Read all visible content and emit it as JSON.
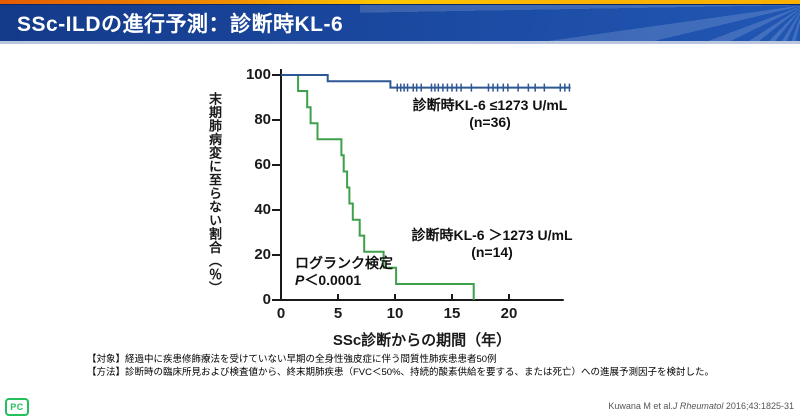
{
  "header": {
    "title": "SSc-ILDの進行予測：診断時KL-6"
  },
  "colors": {
    "accent_orange": "#e55c00",
    "accent_yellow": "#ffc800",
    "header_blue": "#1b4aa2",
    "series_low_blue": "#2e5795",
    "series_high_green": "#3fa04c",
    "logo_green": "#25c05d"
  },
  "chart_data": {
    "type": "line",
    "subtype": "kaplan-meier-step",
    "title": "",
    "xlabel": "SSc診断からの期間（年）",
    "ylabel": "末期肺病変に至らない割合（％）",
    "xlim": [
      0,
      25
    ],
    "ylim": [
      0,
      100
    ],
    "xticks": [
      0,
      5,
      10,
      15,
      20
    ],
    "yticks": [
      0,
      20,
      40,
      60,
      80,
      100
    ],
    "grid": false,
    "legend_position": "inline-annotations",
    "series": [
      {
        "name": "low-kl6",
        "label_line1": "診断時KL-6 ≤1273 U/mL",
        "label_line2": "(n=36)",
        "color": "#2e5795",
        "step_points": [
          [
            0,
            100
          ],
          [
            4.1,
            100
          ],
          [
            4.1,
            97.2
          ],
          [
            9.6,
            97.2
          ],
          [
            9.6,
            94.4
          ],
          [
            25.4,
            94.4
          ]
        ],
        "censor_level": 94.4,
        "censor_years": [
          10.2,
          10.5,
          10.8,
          11.1,
          11.6,
          11.9,
          12.3,
          13.2,
          13.5,
          13.8,
          14.2,
          14.6,
          15.0,
          15.4,
          15.8,
          16.7,
          18.2,
          18.6,
          19.0,
          19.5,
          19.9,
          20.8,
          21.7,
          22.3,
          23.1,
          24.5,
          24.9,
          25.3
        ]
      },
      {
        "name": "high-kl6",
        "label_line1": "診断時KL-6 ＞1273 U/mL",
        "label_line2": "(n=14)",
        "color": "#3fa04c",
        "step_points": [
          [
            0,
            100
          ],
          [
            1.5,
            100
          ],
          [
            1.5,
            92.9
          ],
          [
            2.3,
            92.9
          ],
          [
            2.3,
            85.7
          ],
          [
            2.6,
            85.7
          ],
          [
            2.6,
            78.6
          ],
          [
            3.2,
            78.6
          ],
          [
            3.2,
            71.4
          ],
          [
            5.3,
            71.4
          ],
          [
            5.3,
            64.3
          ],
          [
            5.5,
            64.3
          ],
          [
            5.5,
            57.1
          ],
          [
            5.8,
            57.1
          ],
          [
            5.8,
            50
          ],
          [
            6.0,
            50
          ],
          [
            6.0,
            42.9
          ],
          [
            6.3,
            42.9
          ],
          [
            6.3,
            35.7
          ],
          [
            6.9,
            35.7
          ],
          [
            6.9,
            28.6
          ],
          [
            7.3,
            28.6
          ],
          [
            7.3,
            21.4
          ],
          [
            9.0,
            21.4
          ],
          [
            9.0,
            14.3
          ],
          [
            10.1,
            14.3
          ],
          [
            10.1,
            7.1
          ],
          [
            16.9,
            7.1
          ],
          [
            16.9,
            0
          ]
        ],
        "censor_level": null,
        "censor_years": []
      }
    ],
    "annotation": {
      "line1": "ログランク検定",
      "p_symbol": "P",
      "p_value": "＜0.0001"
    }
  },
  "footnotes": {
    "line1": "【対象】経過中に疾患修飾療法を受けていない早期の全身性強皮症に伴う間質性肺疾患患者50例",
    "line2": "【方法】診断時の臨床所見および検査値から、終末期肺疾患（FVC＜50%、持続的酸素供給を要する、または死亡）への進展予測因子を検討した。"
  },
  "citation": {
    "authors": "Kuwana M et al.",
    "journal": "J Rheumatol",
    "ref": " 2016;43:1825-31"
  },
  "logo": {
    "text": "PC"
  }
}
